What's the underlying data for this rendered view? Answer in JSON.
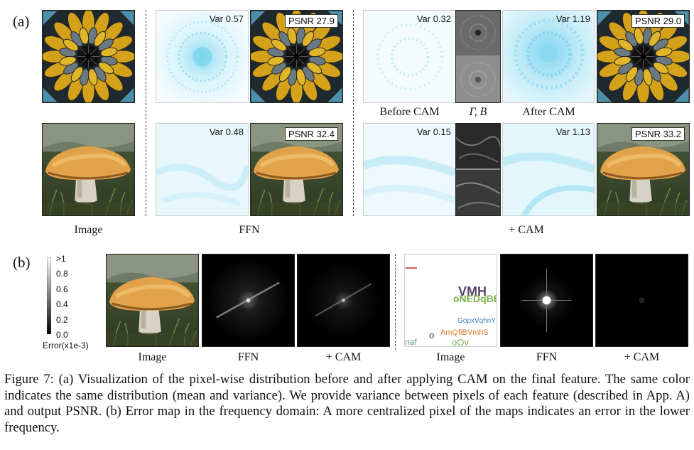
{
  "panel_a": {
    "label": "(a)",
    "rows": [
      {
        "ffn_var": "Var 0.57",
        "ffn_psnr": "PSNR 27.9",
        "before_var": "Var 0.32",
        "after_var": "Var 1.19",
        "cam_psnr": "PSNR 29.0"
      },
      {
        "ffn_var": "Var 0.48",
        "ffn_psnr": "PSNR 32.4",
        "before_var": "Var 0.15",
        "after_var": "Var 1.13",
        "cam_psnr": "PSNR 33.2"
      }
    ],
    "inner_captions": {
      "before": "Before CAM",
      "gamma_beta": "Γ, B",
      "after": "After CAM"
    },
    "group_captions": {
      "image": "Image",
      "ffn": "FFN",
      "cam": "+ CAM"
    }
  },
  "panel_b": {
    "label": "(b)",
    "colorbar": {
      "ticks": [
        ">1",
        "0.8",
        "0.6",
        "0.4",
        "0.2",
        "0.0"
      ],
      "title": "Error(x1e-3)"
    },
    "captions": [
      "Image",
      "FFN",
      "+ CAM",
      "Image",
      "FFN",
      "+ CAM"
    ],
    "text_image": {
      "words": [
        "VMH",
        "oNEDqBE",
        "GopxVqhnY",
        "AmQfiBVmhS",
        "o",
        "naf",
        "oOv"
      ]
    }
  },
  "caption": {
    "lines": [
      "Figure 7: (a) Visualization of the pixel-wise distribution before and after applying CAM on the final feature.  The same color indicates the same distribution (mean and variance).  We provide variance between pixels of each feature (described in App. A) and output PSNR. (b) Error map in the frequency domain: A more centralized pixel of the maps indicates an error in the lower frequency."
    ]
  },
  "colors": {
    "light_cyan": "#bfeaf6",
    "cyan": "#5fd0ee",
    "mushroom_cap": "#e2a24a",
    "stained_glass": "#d4a21a"
  }
}
